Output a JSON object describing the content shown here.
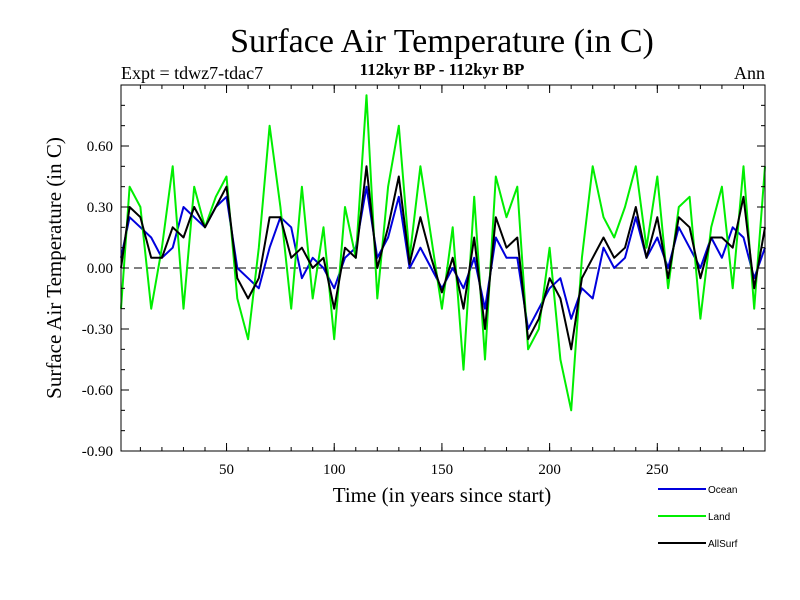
{
  "chart_data": {
    "type": "line",
    "title": "Surface Air Temperature (in C)",
    "subtitle": "112kyr BP - 112kyr BP",
    "left_label": "Expt = tdwz7-tdac7",
    "right_label": "Ann",
    "xlabel": "Time (in years since start)",
    "ylabel": "Surface Air Temperature (in C)",
    "xlim": [
      1,
      300
    ],
    "ylim": [
      -0.9,
      0.9
    ],
    "xticks": [
      50,
      100,
      150,
      200,
      250
    ],
    "yticks": [
      -0.9,
      -0.6,
      -0.3,
      0.0,
      0.3,
      0.6
    ],
    "ytick_labels": [
      "-0.90",
      "-0.60",
      "-0.30",
      "0.00",
      "0.30",
      "0.60"
    ],
    "zero_line": "dashed",
    "legend_position": "bottom-right",
    "x": [
      1,
      5,
      10,
      15,
      20,
      25,
      30,
      35,
      40,
      45,
      50,
      55,
      60,
      65,
      70,
      75,
      80,
      85,
      90,
      95,
      100,
      105,
      110,
      115,
      120,
      125,
      130,
      135,
      140,
      145,
      150,
      155,
      160,
      165,
      170,
      175,
      180,
      185,
      190,
      195,
      200,
      205,
      210,
      215,
      220,
      225,
      230,
      235,
      240,
      245,
      250,
      255,
      260,
      265,
      270,
      275,
      280,
      285,
      290,
      295,
      300
    ],
    "series": [
      {
        "name": "Ocean",
        "color": "#0000dd",
        "values": [
          0.05,
          0.25,
          0.2,
          0.15,
          0.05,
          0.1,
          0.3,
          0.25,
          0.2,
          0.3,
          0.35,
          0.0,
          -0.05,
          -0.1,
          0.1,
          0.25,
          0.2,
          -0.05,
          0.05,
          0.0,
          -0.1,
          0.05,
          0.1,
          0.4,
          0.05,
          0.15,
          0.35,
          0.0,
          0.1,
          0.0,
          -0.1,
          0.0,
          -0.1,
          0.05,
          -0.2,
          0.15,
          0.05,
          0.05,
          -0.3,
          -0.2,
          -0.1,
          -0.05,
          -0.25,
          -0.1,
          -0.15,
          0.1,
          0.0,
          0.05,
          0.25,
          0.05,
          0.15,
          0.0,
          0.2,
          0.1,
          0.0,
          0.15,
          0.05,
          0.2,
          0.15,
          -0.05,
          0.1
        ]
      },
      {
        "name": "Land",
        "color": "#00ee00",
        "values": [
          -0.2,
          0.4,
          0.3,
          -0.2,
          0.1,
          0.5,
          -0.2,
          0.4,
          0.2,
          0.35,
          0.45,
          -0.15,
          -0.35,
          0.1,
          0.7,
          0.3,
          -0.2,
          0.4,
          -0.15,
          0.2,
          -0.35,
          0.3,
          0.05,
          0.85,
          -0.15,
          0.4,
          0.7,
          0.05,
          0.5,
          0.15,
          -0.2,
          0.2,
          -0.5,
          0.35,
          -0.45,
          0.45,
          0.25,
          0.4,
          -0.4,
          -0.3,
          0.1,
          -0.45,
          -0.7,
          0.05,
          0.5,
          0.25,
          0.15,
          0.3,
          0.5,
          0.1,
          0.45,
          -0.1,
          0.3,
          0.35,
          -0.25,
          0.2,
          0.4,
          -0.1,
          0.5,
          -0.2,
          0.5
        ]
      },
      {
        "name": "AllSurf",
        "color": "#000000",
        "values": [
          0.0,
          0.3,
          0.25,
          0.05,
          0.05,
          0.2,
          0.15,
          0.3,
          0.2,
          0.3,
          0.4,
          -0.05,
          -0.15,
          -0.05,
          0.25,
          0.25,
          0.05,
          0.1,
          0.0,
          0.05,
          -0.2,
          0.1,
          0.05,
          0.5,
          0.0,
          0.2,
          0.45,
          0.02,
          0.25,
          0.05,
          -0.12,
          0.05,
          -0.2,
          0.15,
          -0.3,
          0.25,
          0.1,
          0.15,
          -0.35,
          -0.25,
          -0.05,
          -0.15,
          -0.4,
          -0.05,
          0.05,
          0.15,
          0.05,
          0.1,
          0.3,
          0.05,
          0.25,
          -0.05,
          0.25,
          0.2,
          -0.05,
          0.15,
          0.15,
          0.1,
          0.35,
          -0.1,
          0.2
        ]
      }
    ]
  }
}
